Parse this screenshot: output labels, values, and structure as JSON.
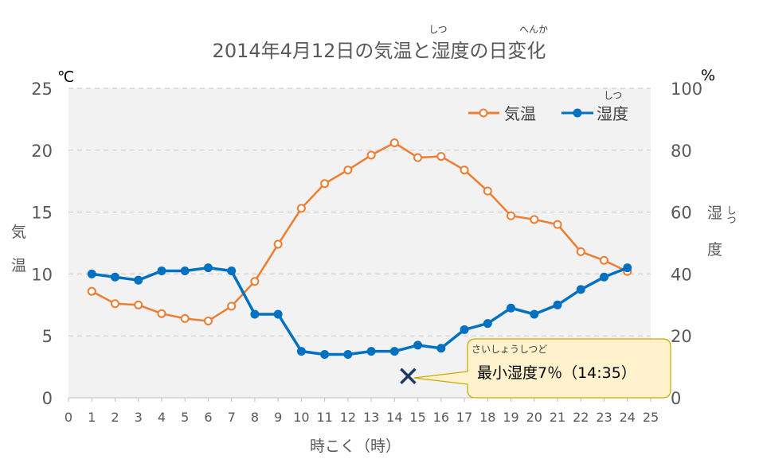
{
  "chart_data": {
    "type": "line",
    "title": {
      "prefix": "2014年4月12日の気温と",
      "humidity_word": "湿度",
      "humidity_ruby": "しつ",
      "mid": "の",
      "change_word": "日変化",
      "change_ruby": "へんか"
    },
    "x_axis": {
      "label": "時こく（時）",
      "range": [
        0,
        25
      ],
      "ticks": [
        0,
        1,
        2,
        3,
        4,
        5,
        6,
        7,
        8,
        9,
        10,
        11,
        12,
        13,
        14,
        15,
        16,
        17,
        18,
        19,
        20,
        21,
        22,
        23,
        24,
        25
      ]
    },
    "y_axis_left": {
      "unit": "℃",
      "label_chars": [
        "気",
        "温"
      ],
      "range": [
        0,
        25
      ],
      "ticks": [
        0,
        5,
        10,
        15,
        20,
        25
      ]
    },
    "y_axis_right": {
      "unit": "%",
      "label_chars": [
        "湿",
        "度"
      ],
      "label_ruby": "しつ",
      "range": [
        0,
        100
      ],
      "ticks": [
        0,
        20,
        40,
        60,
        80,
        100
      ]
    },
    "grid": "horizontal dashed",
    "legend": {
      "position": "top-right",
      "temperature": "気温",
      "humidity": "湿度",
      "humidity_ruby": "しつ"
    },
    "series": [
      {
        "name": "気温",
        "axis": "left",
        "color": "#ED7D31",
        "marker": "hollow-circle",
        "x": [
          1,
          2,
          3,
          4,
          5,
          6,
          7,
          8,
          9,
          10,
          11,
          12,
          13,
          14,
          15,
          16,
          17,
          18,
          19,
          20,
          21,
          22,
          23,
          24
        ],
        "values": [
          8.6,
          7.6,
          7.5,
          6.8,
          6.4,
          6.2,
          7.4,
          9.4,
          12.4,
          15.3,
          17.3,
          18.4,
          19.6,
          20.6,
          19.4,
          19.5,
          18.4,
          16.7,
          14.7,
          14.4,
          14.0,
          11.8,
          11.1,
          10.2
        ]
      },
      {
        "name": "湿度",
        "axis": "right",
        "color": "#0070C0",
        "marker": "filled-circle",
        "x": [
          1,
          2,
          3,
          4,
          5,
          6,
          7,
          8,
          9,
          10,
          11,
          12,
          13,
          14,
          15,
          16,
          17,
          18,
          19,
          20,
          21,
          22,
          23,
          24
        ],
        "values": [
          40,
          39,
          38,
          41,
          41,
          42,
          41,
          27,
          27,
          15,
          14,
          14,
          15,
          15,
          17,
          16,
          22,
          24,
          29,
          27,
          30,
          35,
          39,
          42
        ]
      }
    ],
    "annotation": {
      "marker": "x",
      "marker_color": "#1F3864",
      "x": 14.583,
      "y_right": 7,
      "text": "最小湿度7％（14:35）",
      "ruby": "さいしょうしつど",
      "callout_fill": "#FFF2CC",
      "callout_border": "#C9A800"
    },
    "plot_background": "#F2F2F2"
  }
}
